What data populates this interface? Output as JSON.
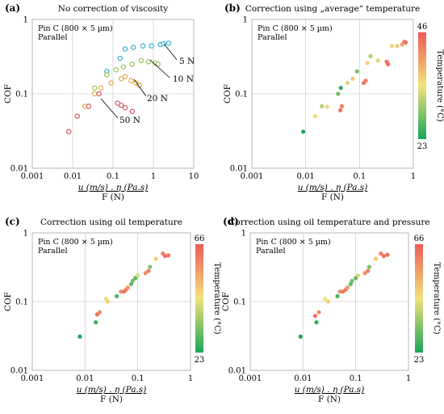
{
  "chart_data": [
    {
      "type": "scatter",
      "panel_label": "(a)",
      "title": "No correction of viscosity",
      "note_lines": [
        "Pin C (800 × 5 µm)",
        "Parallel"
      ],
      "xlabel_primary": "u (m/s) . η (Pa.s)",
      "xlabel_secondary": "F (N)",
      "ylabel": "COF",
      "xscale": "log",
      "yscale": "log",
      "xlim": [
        0.001,
        10
      ],
      "ylim": [
        0.01,
        1
      ],
      "xticks": [
        "0.001",
        "0.01",
        "0.1",
        "1",
        "10"
      ],
      "yticks": [
        "0.01",
        "0.1",
        "1"
      ],
      "grid": true,
      "series": [
        {
          "name": "5 N",
          "color": "#46b6d6",
          "points": [
            [
              0.07,
              0.2
            ],
            [
              0.15,
              0.3
            ],
            [
              0.2,
              0.4
            ],
            [
              0.32,
              0.42
            ],
            [
              0.55,
              0.44
            ],
            [
              0.9,
              0.44
            ],
            [
              1.5,
              0.46
            ],
            [
              1.8,
              0.47
            ],
            [
              2.4,
              0.48
            ]
          ]
        },
        {
          "name": "10 N",
          "color": "#99c860",
          "points": [
            [
              0.035,
              0.12
            ],
            [
              0.07,
              0.18
            ],
            [
              0.12,
              0.21
            ],
            [
              0.18,
              0.23
            ],
            [
              0.3,
              0.25
            ],
            [
              0.5,
              0.28
            ],
            [
              0.75,
              0.27
            ],
            [
              1.1,
              0.26
            ],
            [
              1.3,
              0.25
            ]
          ]
        },
        {
          "name": "20 N",
          "color": "#e6b050",
          "points": [
            [
              0.02,
              0.068
            ],
            [
              0.035,
              0.1
            ],
            [
              0.05,
              0.12
            ],
            [
              0.09,
              0.14
            ],
            [
              0.16,
              0.16
            ],
            [
              0.2,
              0.17
            ],
            [
              0.28,
              0.15
            ],
            [
              0.37,
              0.14
            ],
            [
              0.45,
              0.13
            ]
          ]
        },
        {
          "name": "50 N",
          "color": "#d86070",
          "points": [
            [
              0.008,
              0.031
            ],
            [
              0.013,
              0.05
            ],
            [
              0.025,
              0.068
            ],
            [
              0.045,
              0.1
            ],
            [
              0.13,
              0.075
            ],
            [
              0.16,
              0.07
            ],
            [
              0.2,
              0.065
            ],
            [
              0.3,
              0.058
            ]
          ]
        }
      ],
      "annotations": [
        "5 N",
        "10 N",
        "20 N",
        "50 N"
      ]
    },
    {
      "type": "scatter",
      "panel_label": "(b)",
      "title": "Correction using „average“ temperature",
      "note_lines": [
        "Pin C (800 × 5 µm)",
        "Parallel"
      ],
      "xlabel_primary": "u (m/s) . η (Pa.s)",
      "xlabel_secondary": "F (N)",
      "ylabel": "COF",
      "xscale": "log",
      "yscale": "log",
      "xlim": [
        0.001,
        1
      ],
      "ylim": [
        0.01,
        1
      ],
      "xticks": [
        "0.001",
        "0.01",
        "0.1",
        "1"
      ],
      "yticks": [
        "0.01",
        "0.1",
        "1"
      ],
      "grid": true,
      "colorbar": {
        "label": "Temperature (°C)",
        "min": 23,
        "max": 46,
        "min_label": "23",
        "max_label": "46"
      },
      "points": [
        [
          0.009,
          0.031,
          23
        ],
        [
          0.015,
          0.05,
          34
        ],
        [
          0.02,
          0.068,
          31
        ],
        [
          0.025,
          0.067,
          35
        ],
        [
          0.04,
          0.1,
          28
        ],
        [
          0.045,
          0.12,
          24
        ],
        [
          0.044,
          0.06,
          44
        ],
        [
          0.047,
          0.068,
          43
        ],
        [
          0.06,
          0.14,
          33
        ],
        [
          0.075,
          0.16,
          37
        ],
        [
          0.09,
          0.2,
          28
        ],
        [
          0.12,
          0.14,
          44
        ],
        [
          0.13,
          0.15,
          43
        ],
        [
          0.14,
          0.26,
          36
        ],
        [
          0.16,
          0.32,
          31
        ],
        [
          0.22,
          0.28,
          33
        ],
        [
          0.32,
          0.27,
          44
        ],
        [
          0.34,
          0.25,
          44
        ],
        [
          0.4,
          0.44,
          36
        ],
        [
          0.5,
          0.44,
          36
        ],
        [
          0.62,
          0.46,
          40
        ],
        [
          0.68,
          0.5,
          43
        ],
        [
          0.72,
          0.49,
          44
        ]
      ]
    },
    {
      "type": "scatter",
      "panel_label": "(c)",
      "title": "Correction using oil temperature",
      "note_lines": [
        "Pin C (800 × 5 µm)",
        "Parallel"
      ],
      "xlabel_primary": "u (m/s) . η (Pa.s)",
      "xlabel_secondary": "F (N)",
      "ylabel": "COF",
      "xscale": "log",
      "yscale": "log",
      "xlim": [
        0.001,
        1
      ],
      "ylim": [
        0.01,
        1
      ],
      "xticks": [
        "0.001",
        "0.01",
        "0.1",
        "1"
      ],
      "yticks": [
        "0.01",
        "0.1",
        "1"
      ],
      "grid": true,
      "colorbar": {
        "label": "Temperature (°C)",
        "min": 23,
        "max": 66,
        "min_label": "23",
        "max_label": "66"
      },
      "points": [
        [
          0.008,
          0.031,
          23
        ],
        [
          0.016,
          0.05,
          26
        ],
        [
          0.017,
          0.065,
          62
        ],
        [
          0.019,
          0.07,
          58
        ],
        [
          0.025,
          0.11,
          44
        ],
        [
          0.027,
          0.1,
          47
        ],
        [
          0.04,
          0.12,
          28
        ],
        [
          0.048,
          0.14,
          58
        ],
        [
          0.055,
          0.14,
          62
        ],
        [
          0.06,
          0.15,
          60
        ],
        [
          0.065,
          0.16,
          56
        ],
        [
          0.075,
          0.18,
          30
        ],
        [
          0.08,
          0.2,
          32
        ],
        [
          0.09,
          0.22,
          30
        ],
        [
          0.1,
          0.24,
          42
        ],
        [
          0.14,
          0.26,
          58
        ],
        [
          0.16,
          0.28,
          60
        ],
        [
          0.17,
          0.32,
          33
        ],
        [
          0.22,
          0.42,
          48
        ],
        [
          0.3,
          0.5,
          60
        ],
        [
          0.33,
          0.46,
          63
        ],
        [
          0.38,
          0.47,
          62
        ]
      ]
    },
    {
      "type": "scatter",
      "panel_label": "(d)",
      "title": "Correction using oil temperature and pressure",
      "note_lines": [
        "Pin C (800 × 5 µm)",
        "Parallel"
      ],
      "xlabel_primary": "u (m/s) . η (Pa.s)",
      "xlabel_secondary": "F (N)",
      "ylabel": "COF",
      "xscale": "log",
      "yscale": "log",
      "xlim": [
        0.001,
        1
      ],
      "ylim": [
        0.01,
        1
      ],
      "xticks": [
        "0.001",
        "0.01",
        "0.1",
        "1"
      ],
      "yticks": [
        "0.01",
        "0.1",
        "1"
      ],
      "grid": true,
      "colorbar": {
        "label": "Temperature (°C)",
        "min": 23,
        "max": 66,
        "min_label": "23",
        "max_label": "66"
      },
      "points": [
        [
          0.009,
          0.031,
          23
        ],
        [
          0.018,
          0.05,
          26
        ],
        [
          0.017,
          0.062,
          62
        ],
        [
          0.02,
          0.07,
          58
        ],
        [
          0.026,
          0.11,
          44
        ],
        [
          0.03,
          0.1,
          47
        ],
        [
          0.045,
          0.12,
          28
        ],
        [
          0.05,
          0.14,
          58
        ],
        [
          0.057,
          0.14,
          62
        ],
        [
          0.065,
          0.15,
          60
        ],
        [
          0.07,
          0.16,
          56
        ],
        [
          0.08,
          0.18,
          30
        ],
        [
          0.085,
          0.2,
          32
        ],
        [
          0.1,
          0.22,
          30
        ],
        [
          0.11,
          0.24,
          42
        ],
        [
          0.15,
          0.26,
          58
        ],
        [
          0.17,
          0.28,
          60
        ],
        [
          0.18,
          0.32,
          33
        ],
        [
          0.24,
          0.42,
          48
        ],
        [
          0.3,
          0.5,
          60
        ],
        [
          0.34,
          0.46,
          63
        ],
        [
          0.4,
          0.48,
          62
        ]
      ]
    }
  ]
}
